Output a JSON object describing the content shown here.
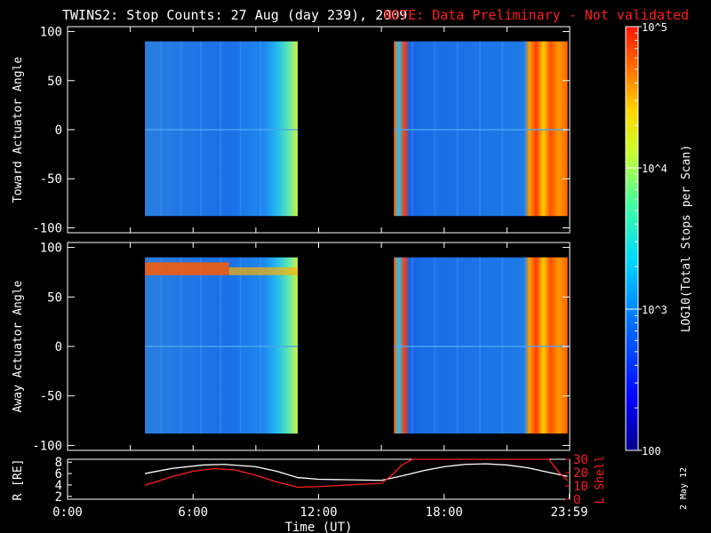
{
  "header": {
    "title": "TWINS2: Stop Counts: 27 Aug (day 239), 2009",
    "note": "NOTE: Data Preliminary - Not validated"
  },
  "colorbar": {
    "label": "LOG10(Total Stops per Scan)",
    "ticks": [
      "10^5",
      "10^4",
      "10^3",
      "100"
    ]
  },
  "footer": {
    "date_stamp": "2 May 12"
  },
  "chart_data": [
    {
      "type": "heatmap",
      "name": "toward",
      "ylabel": "Toward Actuator Angle",
      "ylim": [
        -105,
        105
      ],
      "yticks": [
        100,
        50,
        0,
        -50,
        -100
      ],
      "xlim": [
        0,
        24
      ],
      "data_blocks": [
        {
          "t_start": 3.7,
          "t_end": 11.0,
          "angle_min": -88,
          "angle_max": 90,
          "dominant_log_counts": "~2.8-3.4"
        },
        {
          "t_start": 15.6,
          "t_end": 23.9,
          "angle_min": -88,
          "angle_max": 90,
          "dominant_log_counts": "~2.8-5.0"
        }
      ]
    },
    {
      "type": "heatmap",
      "name": "away",
      "ylabel": "Away Actuator Angle",
      "ylim": [
        -105,
        105
      ],
      "yticks": [
        100,
        50,
        0,
        -50,
        -100
      ],
      "xlim": [
        0,
        24
      ],
      "data_blocks": [
        {
          "t_start": 3.7,
          "t_end": 11.0,
          "angle_min": -88,
          "angle_max": 90,
          "dominant_log_counts": "~2.8-4.8"
        },
        {
          "t_start": 15.6,
          "t_end": 23.9,
          "angle_min": -88,
          "angle_max": 90,
          "dominant_log_counts": "~2.8-5.0"
        }
      ]
    },
    {
      "type": "line",
      "name": "orbit",
      "ylabel_left": "R [RE]",
      "ylabel_right": "L Shell",
      "xlabel": "Time (UT)",
      "xticks": [
        "0:00",
        "6:00",
        "12:00",
        "18:00",
        "23:59"
      ],
      "xtick_hours": [
        0,
        6,
        12,
        18,
        23.98
      ],
      "yticks_left": [
        2,
        4,
        6,
        8
      ],
      "yticks_right": [
        0,
        10,
        20,
        30
      ],
      "ylim_left": [
        1.5,
        8.5
      ],
      "ylim_right": [
        0,
        30
      ],
      "series": [
        {
          "name": "R",
          "color": "#ffffff",
          "x": [
            3.7,
            5,
            6.5,
            7.5,
            9,
            10,
            11,
            12,
            15,
            16,
            17,
            18,
            19,
            20,
            21,
            22,
            23,
            23.9
          ],
          "y": [
            6.0,
            6.9,
            7.5,
            7.6,
            7.2,
            6.4,
            5.3,
            5.0,
            4.8,
            5.6,
            6.5,
            7.2,
            7.6,
            7.7,
            7.5,
            7.0,
            6.2,
            5.5
          ]
        },
        {
          "name": "L Shell",
          "color": "#ff1e1e",
          "x": [
            3.7,
            5,
            6,
            7,
            8,
            9,
            10,
            11,
            12,
            15,
            15.5,
            16,
            16.5,
            23,
            23.5,
            23.9
          ],
          "y": [
            10.5,
            17,
            21,
            23,
            22,
            18,
            13,
            9,
            9.5,
            12,
            18,
            26,
            30,
            30,
            20,
            14
          ]
        }
      ]
    }
  ]
}
